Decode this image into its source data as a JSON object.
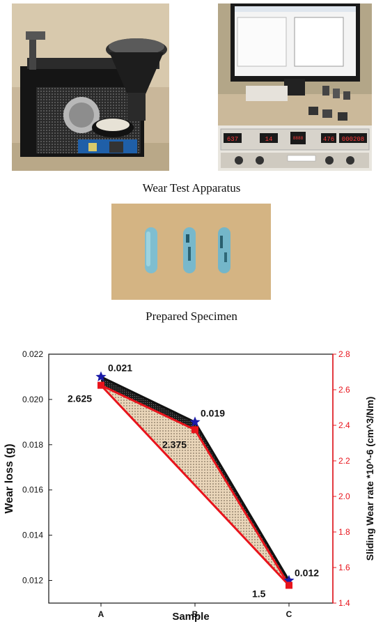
{
  "figure": {
    "caption_apparatus": "Wear Test Apparatus",
    "caption_specimen": "Prepared Specimen",
    "display_readouts": [
      "637",
      "14",
      "8888",
      "476",
      "000208"
    ]
  },
  "chart_data": {
    "type": "line",
    "categories": [
      "A",
      "B",
      "C"
    ],
    "xlabel": "Sample",
    "ylabel_left": "Wear loss (g)",
    "ylabel_right": "Sliding Wear rate *10^-6 (cm^3/Nm)",
    "left_axis": {
      "ylim": [
        0.011,
        0.022
      ],
      "ticks": [
        "0.012",
        "0.014",
        "0.016",
        "0.018",
        "0.020",
        "0.022"
      ]
    },
    "right_axis": {
      "ylim": [
        1.4,
        2.8
      ],
      "ticks": [
        "1.4",
        "1.6",
        "1.8",
        "2.0",
        "2.2",
        "2.4",
        "2.6",
        "2.8"
      ]
    },
    "series": [
      {
        "axis": "left",
        "values": [
          0.021,
          0.019,
          0.012
        ],
        "labels": [
          "0.021",
          "0.019",
          "0.012"
        ],
        "marker": "star",
        "color": "#1a1aa8",
        "line_color": "#111111"
      },
      {
        "axis": "right",
        "values": [
          2.625,
          2.375,
          1.5
        ],
        "labels": [
          "2.625",
          "2.375",
          "1.5"
        ],
        "marker": "square",
        "color": "#e8141c",
        "line_color": "#e8141c"
      }
    ],
    "right_axis_color": "#e8141c",
    "grid": false
  }
}
